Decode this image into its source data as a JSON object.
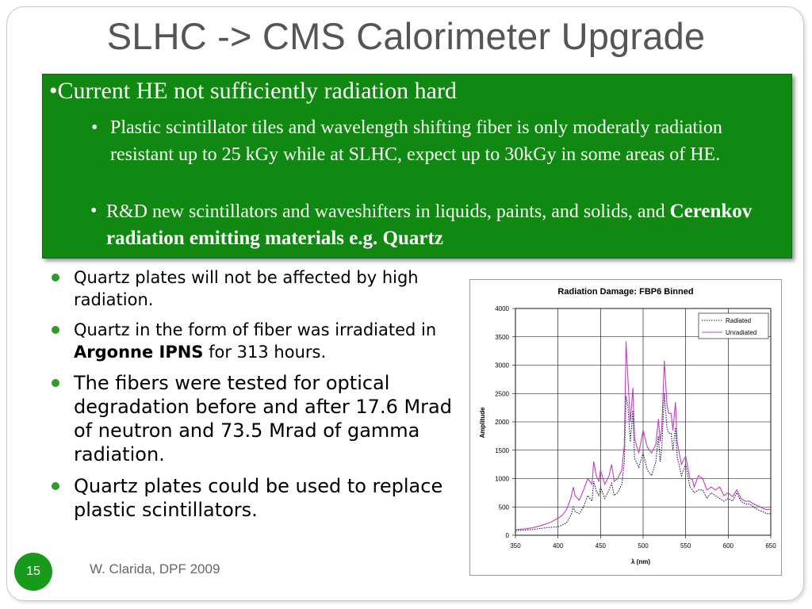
{
  "slide": {
    "title": "SLHC -> CMS Calorimeter Upgrade",
    "page_number": "15",
    "footer": "W. Clarida, DPF 2009"
  },
  "green_box": {
    "heading": "•Current HE not sufficiently radiation hard",
    "sub1_bullet": "•",
    "sub1_text": "Plastic scintillator tiles and wavelength shifting fiber is only moderatly radiation resistant up to 25 kGy while at SLHC, expect up to 30kGy in some areas of HE.",
    "sub2_bullet": "•",
    "sub2_text": "R&D new scintillators and waveshifters in liquids, paints, and solids, and ",
    "sub2_bold": "Cerenkov radiation emitting materials e.g. Quartz"
  },
  "bullets": {
    "b1": "Quartz plates will not be affected by high radiation.",
    "b2_text": "Quartz in the form of fiber was irradiated in ",
    "b2_bold": "Argonne IPNS",
    "b2_rest": " for 313 hours.",
    "b3": "The fibers were tested for optical degradation before and after 17.6 Mrad of neutron and 73.5 Mrad of gamma radiation.",
    "b4": "Quartz plates could be used to replace plastic scintillators."
  },
  "colors": {
    "green_box": "#118811",
    "bullet_green": "#2e9b2e",
    "radiated_line": "#1a1a5a",
    "unradiated_line": "#c040c0"
  },
  "chart_data": {
    "type": "line",
    "title": "Radiation Damage: FBP6 Binned",
    "xlabel": "λ (nm)",
    "ylabel": "Amplitude",
    "xlim": [
      350,
      650
    ],
    "ylim": [
      0,
      4000
    ],
    "xticks": [
      350,
      400,
      450,
      500,
      550,
      600,
      650
    ],
    "yticks": [
      0,
      500,
      1000,
      1500,
      2000,
      2500,
      3000,
      3500,
      4000
    ],
    "grid": true,
    "legend_position": "top-right",
    "series": [
      {
        "name": "Radiated",
        "style": "dotted",
        "color": "#1a1a5a",
        "x": [
          350,
          360,
          370,
          380,
          390,
          400,
          405,
          410,
          415,
          418,
          420,
          425,
          430,
          435,
          440,
          442,
          445,
          448,
          450,
          455,
          460,
          463,
          466,
          470,
          475,
          478,
          480,
          482,
          485,
          488,
          490,
          495,
          500,
          505,
          510,
          515,
          518,
          520,
          522,
          525,
          528,
          530,
          533,
          535,
          538,
          540,
          545,
          550,
          555,
          558,
          560,
          565,
          570,
          575,
          580,
          585,
          590,
          595,
          600,
          605,
          610,
          615,
          620,
          625,
          630,
          635,
          640,
          645,
          650
        ],
        "y": [
          80,
          90,
          100,
          120,
          140,
          150,
          180,
          220,
          350,
          500,
          420,
          380,
          500,
          700,
          600,
          950,
          780,
          700,
          850,
          650,
          800,
          920,
          700,
          750,
          900,
          1300,
          2450,
          2300,
          1650,
          2200,
          1350,
          1200,
          1450,
          1150,
          1050,
          1300,
          1750,
          1300,
          1550,
          2500,
          1900,
          1800,
          1800,
          1500,
          1900,
          1400,
          1050,
          1250,
          850,
          800,
          750,
          800,
          800,
          650,
          750,
          700,
          650,
          600,
          650,
          600,
          750,
          600,
          550,
          550,
          500,
          450,
          420,
          380,
          380
        ]
      },
      {
        "name": "Unradiated",
        "style": "solid",
        "color": "#c040c0",
        "x": [
          350,
          360,
          370,
          380,
          390,
          400,
          405,
          410,
          415,
          418,
          420,
          425,
          430,
          435,
          440,
          442,
          445,
          448,
          450,
          455,
          460,
          463,
          466,
          470,
          475,
          478,
          480,
          482,
          485,
          488,
          490,
          495,
          500,
          505,
          510,
          515,
          518,
          520,
          522,
          525,
          528,
          530,
          533,
          535,
          538,
          540,
          545,
          550,
          555,
          558,
          560,
          565,
          570,
          575,
          580,
          585,
          590,
          595,
          600,
          605,
          610,
          615,
          620,
          625,
          630,
          635,
          640,
          645,
          650
        ],
        "y": [
          100,
          110,
          130,
          170,
          220,
          300,
          350,
          450,
          650,
          850,
          700,
          620,
          800,
          1000,
          900,
          1300,
          1050,
          950,
          1150,
          900,
          1050,
          1250,
          950,
          1000,
          1150,
          1600,
          3420,
          2800,
          2000,
          2600,
          1700,
          1450,
          1850,
          1550,
          1450,
          1600,
          2050,
          1650,
          1900,
          3080,
          2300,
          2150,
          2150,
          1850,
          2350,
          1650,
          1250,
          1400,
          1000,
          980,
          850,
          1050,
          1000,
          800,
          850,
          800,
          850,
          700,
          750,
          680,
          800,
          650,
          600,
          600,
          550,
          520,
          480,
          450,
          460
        ]
      }
    ]
  }
}
